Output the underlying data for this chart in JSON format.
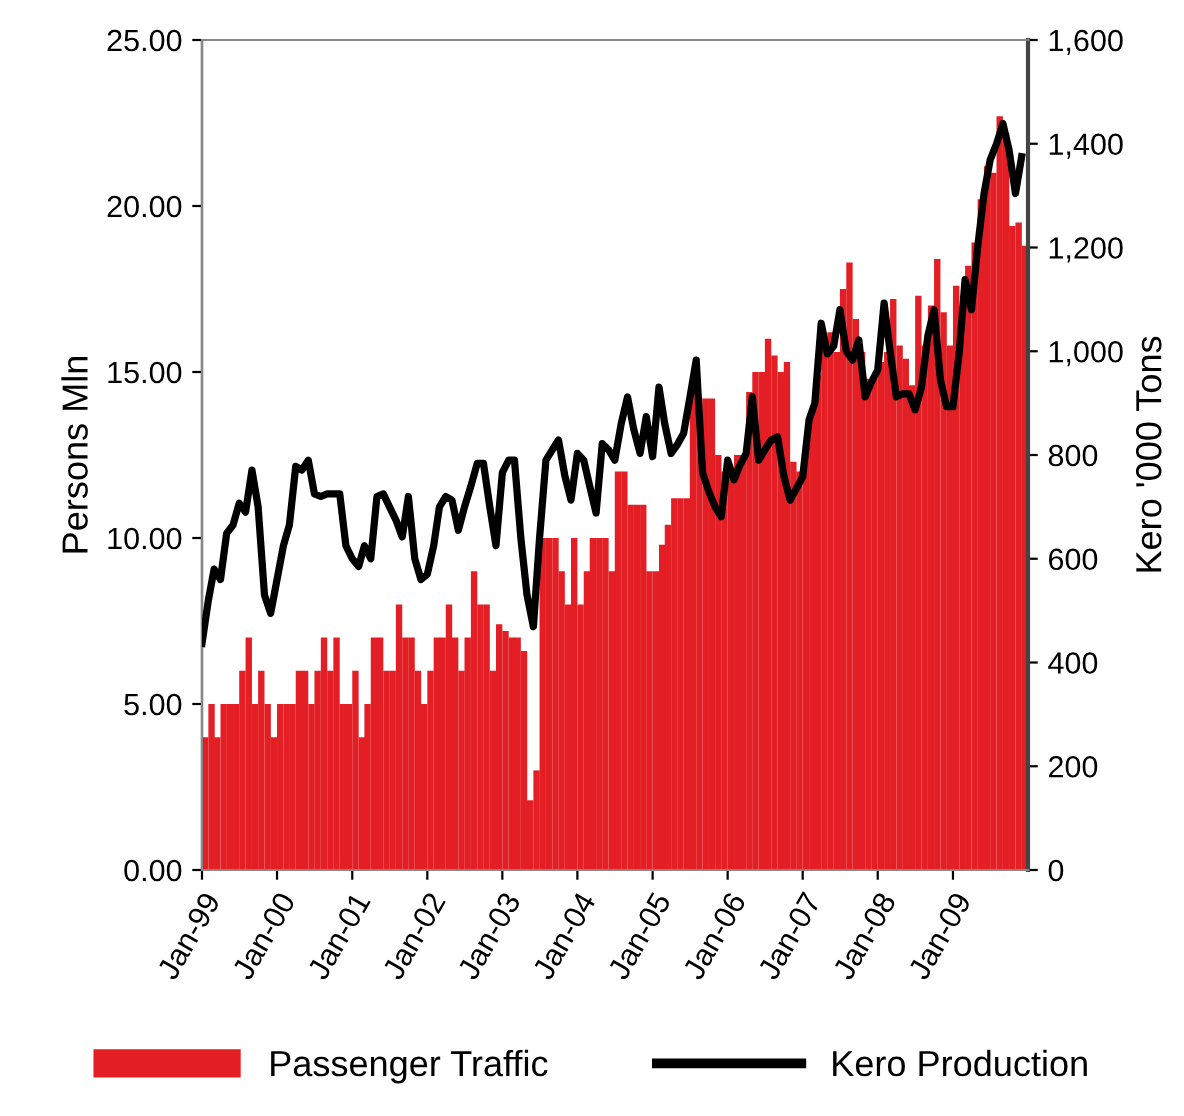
{
  "chart_data": {
    "type": "bar",
    "ylabel": "Persons Mln",
    "y2label": "Kero '000 Tons",
    "x": [
      "1999-01",
      "1999-02",
      "1999-03",
      "1999-04",
      "1999-05",
      "1999-06",
      "1999-07",
      "1999-08",
      "1999-09",
      "1999-10",
      "1999-11",
      "1999-12",
      "2000-01",
      "2000-02",
      "2000-03",
      "2000-04",
      "2000-05",
      "2000-06",
      "2000-07",
      "2000-08",
      "2000-09",
      "2000-10",
      "2000-11",
      "2000-12",
      "2001-01",
      "2001-02",
      "2001-03",
      "2001-04",
      "2001-05",
      "2001-06",
      "2001-07",
      "2001-08",
      "2001-09",
      "2001-10",
      "2001-11",
      "2001-12",
      "2002-01",
      "2002-02",
      "2002-03",
      "2002-04",
      "2002-05",
      "2002-06",
      "2002-07",
      "2002-08",
      "2002-09",
      "2002-10",
      "2002-11",
      "2002-12",
      "2003-01",
      "2003-02",
      "2003-03",
      "2003-04",
      "2003-05",
      "2003-06",
      "2003-07",
      "2003-08",
      "2003-09",
      "2003-10",
      "2003-11",
      "2003-12",
      "2004-01",
      "2004-02",
      "2004-03",
      "2004-04",
      "2004-05",
      "2004-06",
      "2004-07",
      "2004-08",
      "2004-09",
      "2004-10",
      "2004-11",
      "2004-12",
      "2005-01",
      "2005-02",
      "2005-03",
      "2005-04",
      "2005-05",
      "2005-06",
      "2005-07",
      "2005-08",
      "2005-09",
      "2005-10",
      "2005-11",
      "2005-12",
      "2006-01",
      "2006-02",
      "2006-03",
      "2006-04",
      "2006-05",
      "2006-06",
      "2006-07",
      "2006-08",
      "2006-09",
      "2006-10",
      "2006-11",
      "2006-12",
      "2007-01",
      "2007-02",
      "2007-03",
      "2007-04",
      "2007-05",
      "2007-06",
      "2007-07",
      "2007-08",
      "2007-09",
      "2007-10",
      "2007-11",
      "2007-12",
      "2008-01",
      "2008-02",
      "2008-03",
      "2008-04",
      "2008-05",
      "2008-06",
      "2008-07",
      "2008-08",
      "2008-09",
      "2008-10",
      "2008-11",
      "2008-12",
      "2009-01",
      "2009-02",
      "2009-03",
      "2009-04",
      "2009-05",
      "2009-06",
      "2009-07",
      "2009-08",
      "2009-09",
      "2009-10",
      "2009-11",
      "2009-12"
    ],
    "series": [
      {
        "name": "Passenger Traffic",
        "color": "#e31e24",
        "values": [
          4,
          5,
          4,
          5,
          5,
          5,
          6,
          7,
          5,
          6,
          5,
          4,
          5,
          5,
          5,
          6,
          6,
          5,
          6,
          7,
          6,
          7,
          5,
          5,
          6,
          4,
          5,
          7,
          7,
          6,
          6,
          8,
          7,
          7,
          6,
          5,
          6,
          7,
          7,
          8,
          7,
          6,
          7,
          9,
          8,
          8,
          6,
          7.4,
          7.2,
          7,
          7,
          6.6,
          2.1,
          3,
          10,
          10,
          10,
          9,
          8,
          10,
          8,
          9,
          10,
          10,
          10,
          9,
          12,
          12,
          11,
          11,
          11,
          9,
          9,
          9.8,
          10.4,
          11.2,
          11.2,
          11.2,
          14.4,
          14.2,
          14.2,
          14.2,
          12.5,
          12,
          12,
          12.5,
          12.5,
          14.4,
          15,
          15,
          16,
          15.5,
          15,
          15.3,
          12.3,
          12,
          12.6,
          13.8,
          14.9,
          15.8,
          16.2,
          15.6,
          17.5,
          18.3,
          16.6,
          15.6,
          14.8,
          14.8,
          15.3,
          15.6,
          17.2,
          15.8,
          15.4,
          14.6,
          17.3,
          15.8,
          17,
          18.4,
          16.8,
          15.8,
          17.6,
          16.6,
          18.2,
          18.9,
          20.2,
          21.2,
          21,
          22.7,
          22.2,
          19.4,
          19.5,
          18.8
        ]
      },
      {
        "name": "Kero Production",
        "type": "line",
        "axis": "y2",
        "color": "#000000",
        "values": [
          437,
          520,
          580,
          560,
          649,
          665,
          707,
          690,
          771,
          700,
          530,
          495,
          560,
          625,
          665,
          778,
          771,
          790,
          725,
          720,
          725,
          725,
          725,
          625,
          600,
          585,
          625,
          600,
          720,
          725,
          700,
          675,
          642,
          720,
          600,
          560,
          570,
          625,
          700,
          720,
          713,
          655,
          700,
          740,
          784,
          784,
          700,
          625,
          766,
          790,
          790,
          640,
          530,
          469,
          640,
          790,
          810,
          829,
          760,
          713,
          803,
          790,
          740,
          688,
          822,
          810,
          790,
          860,
          912,
          850,
          803,
          874,
          797,
          931,
          860,
          803,
          820,
          842,
          910,
          983,
          766,
          730,
          700,
          681,
          790,
          752,
          780,
          803,
          912,
          790,
          810,
          829,
          835,
          760,
          713,
          735,
          758,
          868,
          900,
          1054,
          995,
          1010,
          1080,
          1000,
          983,
          1022,
          912,
          940,
          964,
          1093,
          1000,
          912,
          918,
          918,
          887,
          931,
          1030,
          1080,
          945,
          893,
          893,
          1000,
          1138,
          1080,
          1200,
          1304,
          1369,
          1400,
          1439,
          1388,
          1304,
          1375
        ]
      }
    ],
    "xlim": [
      "1999-01",
      "2010-01"
    ],
    "xticks": [
      {
        "value": "1999-01",
        "label": "Jan-99"
      },
      {
        "value": "2000-01",
        "label": "Jan-00"
      },
      {
        "value": "2001-01",
        "label": "Jan-01"
      },
      {
        "value": "2002-01",
        "label": "Jan-02"
      },
      {
        "value": "2003-01",
        "label": "Jan-03"
      },
      {
        "value": "2004-01",
        "label": "Jan-04"
      },
      {
        "value": "2005-01",
        "label": "Jan-05"
      },
      {
        "value": "2006-01",
        "label": "Jan-06"
      },
      {
        "value": "2007-01",
        "label": "Jan-07"
      },
      {
        "value": "2008-01",
        "label": "Jan-08"
      },
      {
        "value": "2009-01",
        "label": "Jan-09"
      }
    ],
    "ylim": [
      0,
      25
    ],
    "yticks": [
      {
        "value": 0,
        "label": "0.00"
      },
      {
        "value": 5,
        "label": "5.00"
      },
      {
        "value": 10,
        "label": "10.00"
      },
      {
        "value": 15,
        "label": "15.00"
      },
      {
        "value": 20,
        "label": "20.00"
      },
      {
        "value": 25,
        "label": "25.00"
      }
    ],
    "y2lim": [
      0,
      1600
    ],
    "y2ticks": [
      0,
      200,
      400,
      600,
      800,
      {
        "value": 1000,
        "label": "1,000"
      },
      {
        "value": 1200,
        "label": "1,200"
      },
      {
        "value": 1400,
        "label": "1,400"
      },
      {
        "value": 1600,
        "label": "1,600"
      }
    ],
    "grid": false,
    "legend": "bottom"
  }
}
